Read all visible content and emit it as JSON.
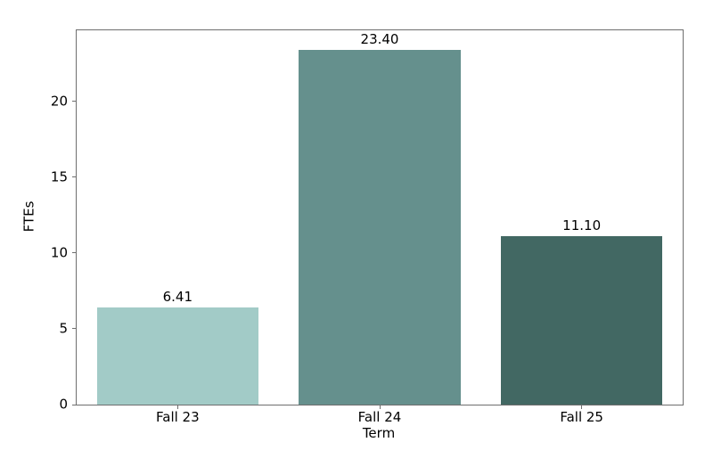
{
  "chart_data": {
    "type": "bar",
    "title": "",
    "xlabel": "Term",
    "ylabel": "FTEs",
    "categories": [
      "Fall 23",
      "Fall 24",
      "Fall 25"
    ],
    "values": [
      6.41,
      23.4,
      11.1
    ],
    "value_labels": [
      "6.41",
      "23.40",
      "11.10"
    ],
    "bar_colors": [
      "#a2cbc7",
      "#65908d",
      "#426863"
    ],
    "yticks": [
      0,
      5,
      10,
      15,
      20
    ],
    "ylim": [
      0,
      24.7
    ],
    "bar_width_fraction": 0.8,
    "grid": false,
    "legend_position": "none",
    "spine_color": "#6e6e6e",
    "text_color": "#000000",
    "background_color": "#ffffff"
  }
}
